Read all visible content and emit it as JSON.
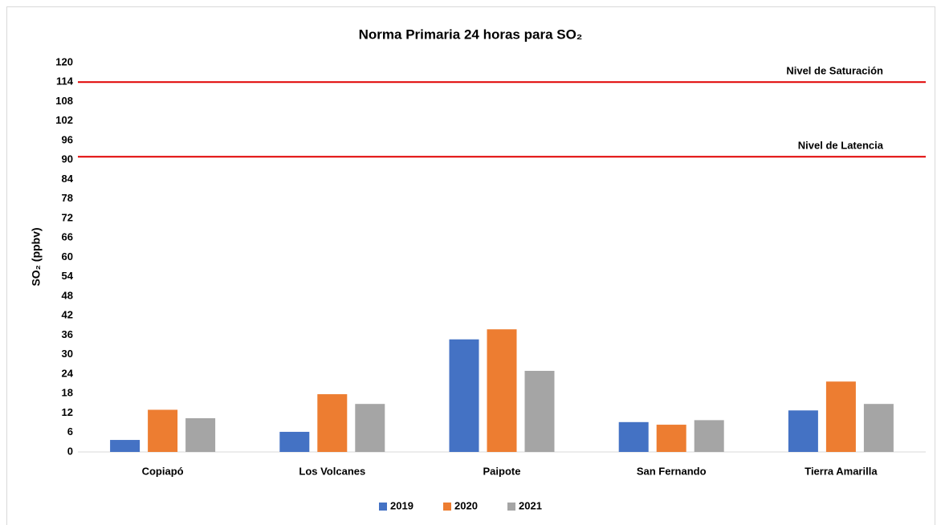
{
  "chart_data": {
    "type": "bar",
    "title": "Norma Primaria 24 horas para SO₂",
    "y_label": "SO₂ (ppbv)",
    "categories": [
      "Copiapó",
      "Los Volcanes",
      "Paipote",
      "San Fernando",
      "Tierra Amarilla"
    ],
    "series": [
      {
        "name": "2019",
        "color": "#4472c4",
        "values": [
          3.7,
          6.2,
          34.7,
          9.2,
          12.8
        ]
      },
      {
        "name": "2020",
        "color": "#ed7d31",
        "values": [
          13,
          17.8,
          37.8,
          8.4,
          21.7
        ]
      },
      {
        "name": "2021",
        "color": "#a5a5a5",
        "values": [
          10.4,
          14.8,
          25,
          9.8,
          14.8
        ]
      }
    ],
    "reference_lines": [
      {
        "label": "Nivel de Saturación",
        "value": 114,
        "color": "#e00000"
      },
      {
        "label": "Nivel de Latencia",
        "value": 91,
        "color": "#e00000"
      }
    ],
    "ylim": [
      0,
      120
    ],
    "yticks": [
      0,
      6,
      12,
      18,
      24,
      30,
      36,
      42,
      48,
      54,
      60,
      66,
      72,
      78,
      84,
      90,
      96,
      102,
      108,
      114,
      120
    ],
    "grid": false,
    "legend": "bottom"
  }
}
